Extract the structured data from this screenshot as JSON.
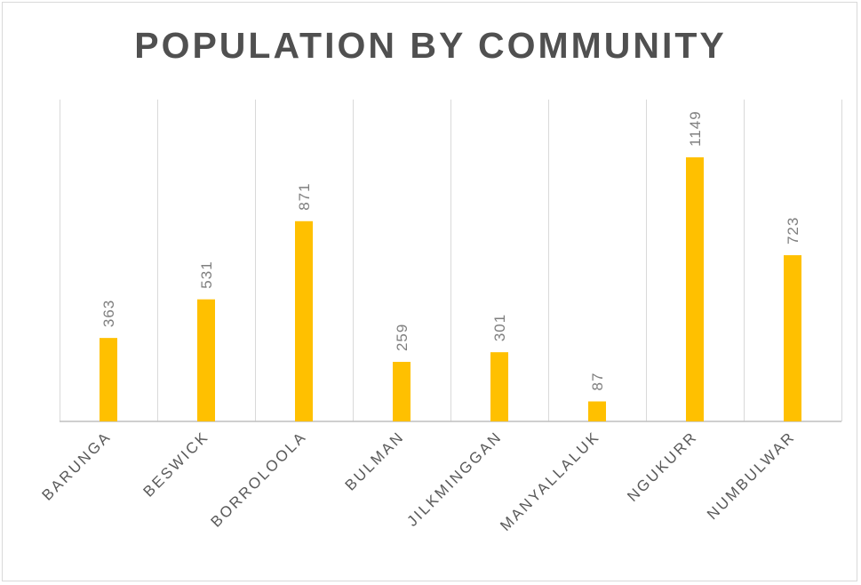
{
  "chart_data": {
    "type": "bar",
    "title": "POPULATION BY COMMUNITY",
    "categories": [
      "BARUNGA",
      "BESWICK",
      "BORROLOOLA",
      "BULMAN",
      "JILKMINGGAN",
      "MANYALLALUK",
      "NGUKURR",
      "NUMBULWAR"
    ],
    "values": [
      363,
      531,
      871,
      259,
      301,
      87,
      1149,
      723
    ],
    "data_labels": [
      "363",
      "531",
      "871",
      "259",
      "301",
      "87",
      "1149",
      "723"
    ],
    "ylim": [
      0,
      1400
    ],
    "xlabel": "",
    "ylabel": "",
    "grid": "vertical",
    "legend": "none",
    "bar_color": "#ffc000"
  }
}
